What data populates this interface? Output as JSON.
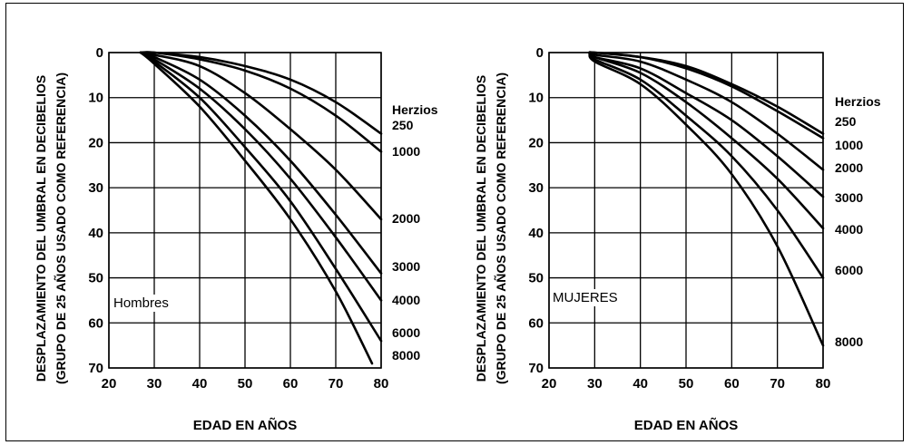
{
  "chart_data": [
    {
      "type": "line",
      "panel_label": "Hombres",
      "xlabel": "EDAD EN AÑOS",
      "ylabel_line1": "DESPLAZAMIENTO DEL UMBRAL EN DECIBELIOS",
      "ylabel_line2": "(GRUPO DE 25 AÑOS USADO COMO REFERENCIA)",
      "xlim": [
        20,
        80
      ],
      "ylim": [
        0,
        70
      ],
      "y_inverted": true,
      "x_ticks": [
        "20",
        "30",
        "40",
        "50",
        "60",
        "70",
        "80"
      ],
      "y_ticks": [
        "0",
        "10",
        "20",
        "30",
        "40",
        "50",
        "60",
        "70"
      ],
      "grid": true,
      "legend_title": "Herzios",
      "series": [
        {
          "name": "250",
          "x": [
            27,
            30,
            40,
            50,
            60,
            70,
            80
          ],
          "y": [
            0,
            0,
            1,
            3,
            6,
            11,
            18
          ]
        },
        {
          "name": "1000",
          "x": [
            27,
            30,
            40,
            50,
            60,
            70,
            80
          ],
          "y": [
            0,
            0,
            1.5,
            4,
            8,
            14,
            22
          ]
        },
        {
          "name": "2000",
          "x": [
            27,
            30,
            40,
            50,
            60,
            70,
            80
          ],
          "y": [
            0,
            0.5,
            3,
            9,
            17,
            26,
            37
          ]
        },
        {
          "name": "3000",
          "x": [
            27,
            30,
            40,
            50,
            60,
            70,
            80
          ],
          "y": [
            0,
            1,
            6,
            14,
            24,
            36,
            49
          ]
        },
        {
          "name": "4000",
          "x": [
            27,
            30,
            40,
            50,
            60,
            70,
            80
          ],
          "y": [
            0,
            1.5,
            8,
            17,
            28,
            41,
            55
          ]
        },
        {
          "name": "6000",
          "x": [
            27,
            30,
            40,
            50,
            60,
            70,
            80
          ],
          "y": [
            0,
            2,
            10,
            21,
            33,
            48,
            64
          ]
        },
        {
          "name": "8000",
          "x": [
            27,
            30,
            40,
            50,
            60,
            70,
            78
          ],
          "y": [
            0,
            2.5,
            12,
            24,
            37,
            53,
            69
          ]
        }
      ]
    },
    {
      "type": "line",
      "panel_label": "MUJERES",
      "xlabel": "EDAD EN AÑOS",
      "ylabel_line1": "DESPLAZAMIENTO DEL UMBRAL EN DECIBELIOS",
      "ylabel_line2": "(GRUPO DE 25 AÑOS USADO COMO REFERENCIA)",
      "xlim": [
        20,
        80
      ],
      "ylim": [
        0,
        70
      ],
      "y_inverted": true,
      "x_ticks": [
        "20",
        "30",
        "40",
        "50",
        "60",
        "70",
        "80"
      ],
      "y_ticks": [
        "0",
        "10",
        "20",
        "30",
        "40",
        "50",
        "60",
        "70"
      ],
      "grid": true,
      "legend_title": "Herzios",
      "series": [
        {
          "name": "250",
          "x": [
            29,
            30,
            40,
            50,
            60,
            70,
            80
          ],
          "y": [
            0,
            0,
            1,
            3,
            7,
            12,
            18
          ]
        },
        {
          "name": "1000",
          "x": [
            29,
            30,
            40,
            50,
            60,
            70,
            80
          ],
          "y": [
            0,
            0,
            1,
            3.5,
            7.5,
            13,
            19
          ]
        },
        {
          "name": "2000",
          "x": [
            29,
            30,
            40,
            50,
            60,
            70,
            80
          ],
          "y": [
            0,
            0.5,
            2,
            6,
            11,
            18,
            26
          ]
        },
        {
          "name": "3000",
          "x": [
            29,
            30,
            40,
            50,
            60,
            70,
            80
          ],
          "y": [
            0,
            1,
            3.5,
            9,
            15,
            23,
            32
          ]
        },
        {
          "name": "4000",
          "x": [
            29,
            30,
            40,
            50,
            60,
            70,
            80
          ],
          "y": [
            0,
            1,
            4.5,
            11,
            19,
            28,
            39
          ]
        },
        {
          "name": "6000",
          "x": [
            29,
            30,
            40,
            50,
            60,
            70,
            80
          ],
          "y": [
            0,
            1.5,
            6,
            14,
            23,
            35,
            50
          ]
        },
        {
          "name": "8000",
          "x": [
            29,
            30,
            40,
            50,
            60,
            70,
            80
          ],
          "y": [
            0,
            2,
            7,
            16,
            27,
            43,
            65
          ]
        }
      ]
    }
  ]
}
